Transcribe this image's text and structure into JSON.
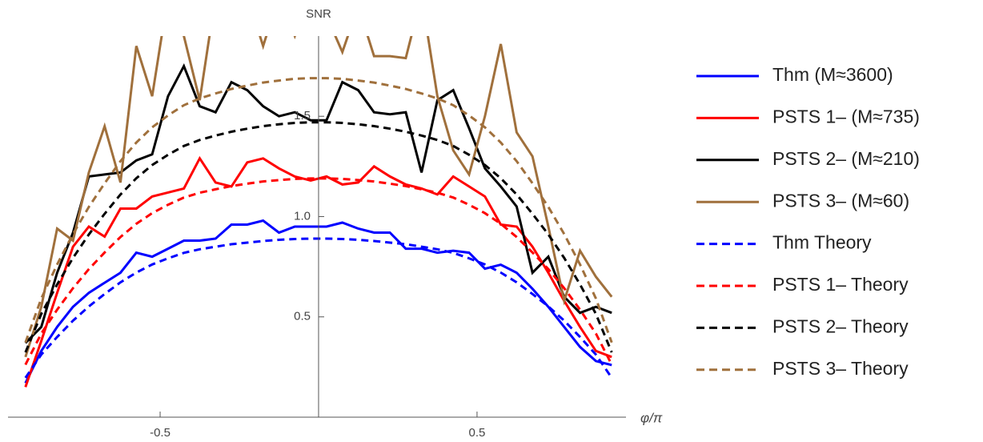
{
  "chart_data": {
    "type": "line",
    "ylabel": "SNR",
    "xlabel": "φ/π",
    "xlim": [
      -0.98,
      0.97
    ],
    "ylim": [
      0,
      1.9
    ],
    "xticks": [
      -0.5,
      0.5
    ],
    "yticks": [
      0.5,
      {
        "value": 1,
        "label": "1.0"
      },
      1.5
    ],
    "x": [
      -0.925,
      -0.875,
      -0.825,
      -0.775,
      -0.725,
      -0.675,
      -0.625,
      -0.575,
      -0.525,
      -0.475,
      -0.425,
      -0.375,
      -0.325,
      -0.275,
      -0.225,
      -0.175,
      -0.125,
      -0.075,
      -0.025,
      0.025,
      0.075,
      0.125,
      0.175,
      0.225,
      0.275,
      0.325,
      0.375,
      0.425,
      0.475,
      0.525,
      0.575,
      0.625,
      0.675,
      0.725,
      0.775,
      0.825,
      0.875,
      0.925
    ],
    "series": [
      {
        "name": "Thm (M≈3600)",
        "color": "#0000ff",
        "dashed": false,
        "values": [
          0.17,
          0.33,
          0.45,
          0.55,
          0.62,
          0.67,
          0.72,
          0.82,
          0.8,
          0.84,
          0.88,
          0.88,
          0.89,
          0.96,
          0.96,
          0.98,
          0.92,
          0.95,
          0.95,
          0.95,
          0.97,
          0.94,
          0.92,
          0.92,
          0.84,
          0.84,
          0.82,
          0.83,
          0.82,
          0.74,
          0.76,
          0.72,
          0.64,
          0.55,
          0.45,
          0.35,
          0.28,
          0.26
        ]
      },
      {
        "name": "PSTS 1– (M≈735)",
        "color": "#ff0000",
        "dashed": false,
        "values": [
          0.15,
          0.38,
          0.62,
          0.85,
          0.95,
          0.9,
          1.04,
          1.04,
          1.1,
          1.12,
          1.14,
          1.29,
          1.17,
          1.15,
          1.27,
          1.29,
          1.24,
          1.2,
          1.18,
          1.2,
          1.16,
          1.17,
          1.25,
          1.2,
          1.16,
          1.14,
          1.11,
          1.2,
          1.15,
          1.1,
          0.96,
          0.95,
          0.85,
          0.72,
          0.58,
          0.45,
          0.33,
          0.3
        ]
      },
      {
        "name": "PSTS 2– (M≈210)",
        "color": "#000000",
        "dashed": false,
        "values": [
          0.37,
          0.45,
          0.72,
          0.92,
          1.2,
          1.21,
          1.22,
          1.28,
          1.31,
          1.6,
          1.75,
          1.55,
          1.52,
          1.67,
          1.63,
          1.55,
          1.5,
          1.52,
          1.48,
          1.48,
          1.67,
          1.63,
          1.52,
          1.51,
          1.52,
          1.22,
          1.58,
          1.63,
          1.44,
          1.24,
          1.15,
          1.05,
          0.72,
          0.8,
          0.6,
          0.52,
          0.55,
          0.52
        ]
      },
      {
        "name": "PSTS 3– (M≈60)",
        "color": "#a0703c",
        "dashed": false,
        "values": [
          0.3,
          0.55,
          0.94,
          0.88,
          1.22,
          1.45,
          1.17,
          1.85,
          1.6,
          2.1,
          1.9,
          1.58,
          2.1,
          1.95,
          2.1,
          1.85,
          2.1,
          1.9,
          2.1,
          2.0,
          1.82,
          2.05,
          1.8,
          1.8,
          1.79,
          2.1,
          1.6,
          1.33,
          1.21,
          1.5,
          1.86,
          1.42,
          1.3,
          0.95,
          0.58,
          0.83,
          0.7,
          0.6
        ]
      },
      {
        "name": "Thm Theory",
        "color": "#0000ff",
        "dashed": true,
        "values": [
          0.196,
          0.312,
          0.4,
          0.481,
          0.552,
          0.614,
          0.672,
          0.721,
          0.761,
          0.792,
          0.819,
          0.837,
          0.85,
          0.862,
          0.87,
          0.878,
          0.884,
          0.888,
          0.89,
          0.89,
          0.888,
          0.884,
          0.878,
          0.87,
          0.862,
          0.85,
          0.837,
          0.819,
          0.792,
          0.761,
          0.721,
          0.672,
          0.614,
          0.552,
          0.481,
          0.4,
          0.312,
          0.196
        ]
      },
      {
        "name": "PSTS 1– Theory",
        "color": "#ff0000",
        "dashed": true,
        "values": [
          0.262,
          0.417,
          0.536,
          0.643,
          0.738,
          0.821,
          0.898,
          0.964,
          1.017,
          1.059,
          1.095,
          1.119,
          1.136,
          1.152,
          1.164,
          1.175,
          1.182,
          1.188,
          1.19,
          1.19,
          1.188,
          1.182,
          1.175,
          1.164,
          1.152,
          1.136,
          1.119,
          1.095,
          1.059,
          1.017,
          0.964,
          0.898,
          0.821,
          0.738,
          0.643,
          0.536,
          0.417,
          0.262
        ]
      },
      {
        "name": "PSTS 2– Theory",
        "color": "#000000",
        "dashed": true,
        "values": [
          0.323,
          0.515,
          0.662,
          0.794,
          0.911,
          1.014,
          1.11,
          1.191,
          1.257,
          1.308,
          1.352,
          1.382,
          1.404,
          1.423,
          1.438,
          1.451,
          1.46,
          1.467,
          1.47,
          1.47,
          1.467,
          1.46,
          1.451,
          1.438,
          1.423,
          1.404,
          1.382,
          1.352,
          1.308,
          1.257,
          1.191,
          1.11,
          1.014,
          0.911,
          0.794,
          0.662,
          0.515,
          0.323
        ]
      },
      {
        "name": "PSTS 3– Theory",
        "color": "#a0703c",
        "dashed": true,
        "values": [
          0.372,
          0.592,
          0.761,
          0.913,
          1.048,
          1.166,
          1.276,
          1.369,
          1.445,
          1.504,
          1.555,
          1.589,
          1.614,
          1.636,
          1.653,
          1.668,
          1.678,
          1.687,
          1.69,
          1.69,
          1.687,
          1.678,
          1.668,
          1.653,
          1.636,
          1.614,
          1.589,
          1.555,
          1.504,
          1.445,
          1.369,
          1.276,
          1.166,
          1.048,
          0.913,
          0.761,
          0.592,
          0.372
        ]
      }
    ]
  }
}
